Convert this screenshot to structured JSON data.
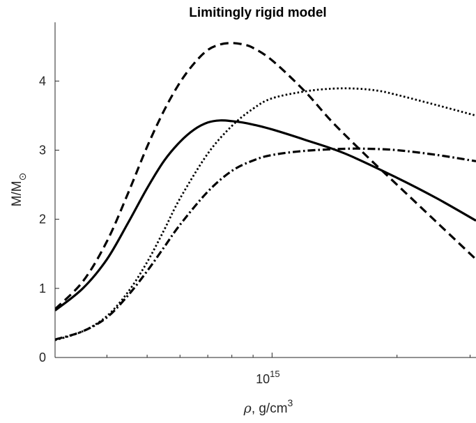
{
  "chart_data": {
    "type": "line",
    "title": "Limitingly rigid model",
    "xlabel": {
      "symbol": "ρ",
      "text": ", g/cm",
      "sup": "3"
    },
    "ylabel": {
      "main": "M/M",
      "sub": "⊙"
    },
    "x_scale": "log",
    "xlim": [
      300000000000000.0,
      3100000000000000.0
    ],
    "ylim": [
      0,
      4.85
    ],
    "x_ticks": [
      {
        "value": 1000000000000000.0,
        "base": "10",
        "exp": "15"
      }
    ],
    "x_minor_ticks": [
      400000000000000.0,
      500000000000000.0,
      600000000000000.0,
      700000000000000.0,
      800000000000000.0,
      900000000000000.0,
      2000000000000000.0,
      3000000000000000.0
    ],
    "y_ticks": [
      0,
      1,
      2,
      3,
      4
    ],
    "grid": false,
    "legend": "none",
    "series": [
      {
        "style": "solid",
        "color": "#000000",
        "x": [
          300000000000000.0,
          350000000000000.0,
          400000000000000.0,
          450000000000000.0,
          500000000000000.0,
          550000000000000.0,
          600000000000000.0,
          650000000000000.0,
          700000000000000.0,
          750000000000000.0,
          800000000000000.0,
          850000000000000.0,
          900000000000000.0,
          1000000000000000.0,
          1200000000000000.0,
          1500000000000000.0,
          2000000000000000.0,
          2500000000000000.0,
          3100000000000000.0
        ],
        "y": [
          0.68,
          1.0,
          1.42,
          1.95,
          2.45,
          2.85,
          3.12,
          3.3,
          3.4,
          3.43,
          3.42,
          3.4,
          3.37,
          3.3,
          3.15,
          2.95,
          2.6,
          2.3,
          1.98
        ]
      },
      {
        "style": "dashed",
        "color": "#000000",
        "x": [
          300000000000000.0,
          350000000000000.0,
          400000000000000.0,
          450000000000000.0,
          500000000000000.0,
          550000000000000.0,
          600000000000000.0,
          650000000000000.0,
          700000000000000.0,
          750000000000000.0,
          800000000000000.0,
          850000000000000.0,
          900000000000000.0,
          1000000000000000.0,
          1200000000000000.0,
          1400000000000000.0,
          1700000000000000.0,
          2000000000000000.0,
          2500000000000000.0,
          3100000000000000.0
        ],
        "y": [
          0.7,
          1.1,
          1.68,
          2.38,
          3.05,
          3.58,
          3.98,
          4.26,
          4.45,
          4.53,
          4.55,
          4.53,
          4.48,
          4.3,
          3.85,
          3.4,
          2.9,
          2.5,
          1.95,
          1.42
        ]
      },
      {
        "style": "dotted",
        "color": "#000000",
        "x": [
          300000000000000.0,
          350000000000000.0,
          400000000000000.0,
          450000000000000.0,
          500000000000000.0,
          550000000000000.0,
          600000000000000.0,
          700000000000000.0,
          800000000000000.0,
          900000000000000.0,
          1000000000000000.0,
          1200000000000000.0,
          1400000000000000.0,
          1600000000000000.0,
          1800000000000000.0,
          2000000000000000.0,
          2500000000000000.0,
          3100000000000000.0
        ],
        "y": [
          0.25,
          0.38,
          0.6,
          0.95,
          1.38,
          1.85,
          2.3,
          2.95,
          3.35,
          3.6,
          3.75,
          3.85,
          3.89,
          3.89,
          3.86,
          3.8,
          3.65,
          3.5
        ]
      },
      {
        "style": "dashdot",
        "color": "#000000",
        "x": [
          300000000000000.0,
          350000000000000.0,
          400000000000000.0,
          450000000000000.0,
          500000000000000.0,
          550000000000000.0,
          600000000000000.0,
          700000000000000.0,
          800000000000000.0,
          900000000000000.0,
          1000000000000000.0,
          1200000000000000.0,
          1500000000000000.0,
          1700000000000000.0,
          2000000000000000.0,
          2500000000000000.0,
          3100000000000000.0
        ],
        "y": [
          0.26,
          0.38,
          0.58,
          0.9,
          1.25,
          1.6,
          1.92,
          2.4,
          2.7,
          2.85,
          2.93,
          2.99,
          3.02,
          3.02,
          3.0,
          2.93,
          2.84
        ]
      }
    ]
  }
}
